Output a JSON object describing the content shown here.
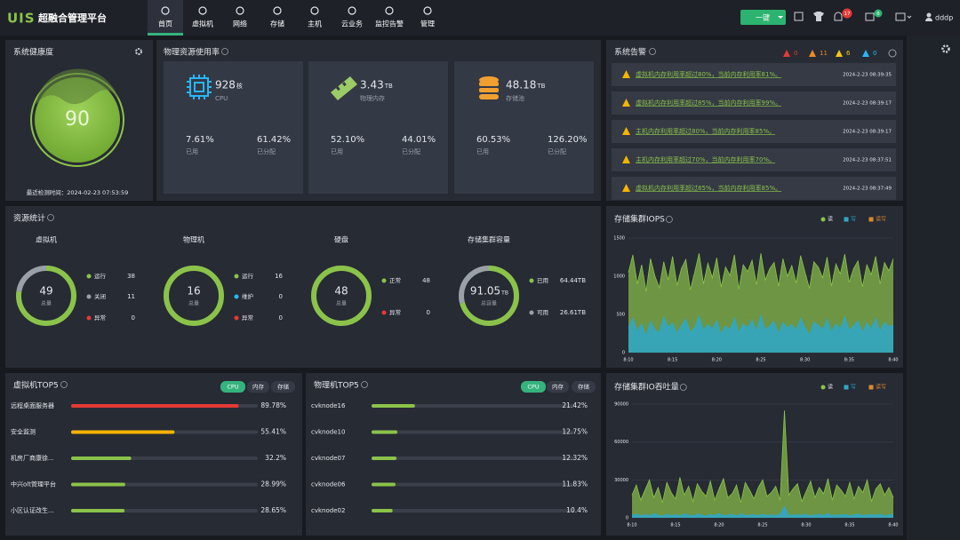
{
  "nav": {
    "logo": "UIS",
    "title": "超融合管理平台",
    "items": [
      "首页",
      "虚拟机",
      "网络",
      "存储",
      "主机",
      "云业务",
      "监控告警",
      "管理"
    ],
    "one_click": "一键",
    "badges": [
      "17",
      "6"
    ],
    "user": "dddp"
  },
  "health": {
    "title": "系统健康度",
    "score": "90",
    "check_time": "最近检测时间：2024-02-23 07:53:59"
  },
  "resources": {
    "title": "物理资源使用率",
    "cards": [
      {
        "value": "928",
        "unit": "核",
        "name": "CPU",
        "used": "7.61%",
        "used_label": "已用",
        "allocated": "61.42%",
        "allocated_label": "已分配"
      },
      {
        "value": "3.43",
        "unit": "TB",
        "name": "物理内存",
        "used": "52.10%",
        "used_label": "已用",
        "allocated": "44.01%",
        "allocated_label": "已分配"
      },
      {
        "value": "48.18",
        "unit": "TB",
        "name": "存储池",
        "used": "60.53%",
        "used_label": "已用",
        "allocated": "126.20%",
        "allocated_label": "已分配"
      }
    ]
  },
  "alerts": {
    "title": "系统告警",
    "counts": [
      "0",
      "11",
      "6",
      "0"
    ],
    "items": [
      {
        "text": "虚拟机内存利用率超过80%，当前内存利用率81%。",
        "time": "2024-2-23 08:39:35"
      },
      {
        "text": "虚拟机内存利用率超过85%，当前内存利用率99%。",
        "time": "2024-2-23 08:39:17"
      },
      {
        "text": "主机内存利用率超过80%，当前内存利用率85%。",
        "time": "2024-2-23 08:39:17"
      },
      {
        "text": "主机内存利用率超过70%，当前内存利用率70%。",
        "time": "2024-2-23 08:37:51"
      },
      {
        "text": "虚拟机内存利用率超过85%，当前内存利用率85%。",
        "time": "2024-2-23 08:37:49"
      }
    ]
  },
  "stats": {
    "title": "资源统计",
    "groups": [
      {
        "name": "虚拟机",
        "total": "49",
        "total_label": "总量",
        "items": [
          {
            "name": "运行",
            "value": 38,
            "color": "#8bc34a"
          },
          {
            "name": "关闭",
            "value": 11,
            "color": "#9aa0a8"
          },
          {
            "name": "异常",
            "value": 0,
            "color": "#e53935"
          }
        ]
      },
      {
        "name": "物理机",
        "total": "16",
        "total_label": "总量",
        "items": [
          {
            "name": "运行",
            "value": 16,
            "color": "#8bc34a"
          },
          {
            "name": "维护",
            "value": 0,
            "color": "#29b6f6"
          },
          {
            "name": "异常",
            "value": 0,
            "color": "#e53935"
          }
        ]
      },
      {
        "name": "硬盘",
        "total": "48",
        "total_label": "总量",
        "items": [
          {
            "name": "正常",
            "value": 48,
            "color": "#8bc34a"
          },
          {
            "name": "异常",
            "value": 0,
            "color": "#e53935"
          }
        ]
      },
      {
        "name": "存储集群容量",
        "total": "91.05",
        "total_unit": "TB",
        "total_label": "总容量",
        "items": [
          {
            "name": "已用",
            "value": 64.44,
            "label": "64.44TB",
            "color": "#8bc34a"
          },
          {
            "name": "可用",
            "value": 26.61,
            "label": "26.61TB",
            "color": "#9aa0a8"
          }
        ]
      }
    ]
  },
  "vm_top": {
    "title": "虚拟机TOP5",
    "tabs": [
      "CPU",
      "内存",
      "存储"
    ],
    "xlim": [
      0,
      100
    ],
    "rows": [
      {
        "name": "远程桌面服务器",
        "value": 89.78,
        "label": "89.78%",
        "color": "#e53935"
      },
      {
        "name": "安全监测",
        "value": 55.41,
        "label": "55.41%",
        "color": "#f5b400"
      },
      {
        "name": "机房厂商康徐...",
        "value": 32.2,
        "label": "32.2%",
        "color": "#8bc34a"
      },
      {
        "name": "中兴olt管理平台",
        "value": 28.99,
        "label": "28.99%",
        "color": "#8bc34a"
      },
      {
        "name": "小区认证改生...",
        "value": 28.65,
        "label": "28.65%",
        "color": "#8bc34a"
      }
    ]
  },
  "host_top": {
    "title": "物理机TOP5",
    "tabs": [
      "CPU",
      "内存",
      "存储"
    ],
    "xlim": [
      0,
      100
    ],
    "rows": [
      {
        "name": "cvknode16",
        "value": 21.42,
        "label": "21.42%",
        "color": "#8bc34a"
      },
      {
        "name": "cvknode10",
        "value": 12.75,
        "label": "12.75%",
        "color": "#8bc34a"
      },
      {
        "name": "cvknode07",
        "value": 12.32,
        "label": "12.32%",
        "color": "#8bc34a"
      },
      {
        "name": "cvknode06",
        "value": 11.83,
        "label": "11.83%",
        "color": "#8bc34a"
      },
      {
        "name": "cvknode02",
        "value": 10.4,
        "label": "10.4%",
        "color": "#8bc34a"
      }
    ]
  },
  "iops_chart": {
    "type": "area",
    "title": "存储集群IOPS",
    "categories": [
      "8:10",
      null,
      null,
      null,
      null,
      null,
      null,
      null,
      null,
      null,
      "8:15",
      null,
      null,
      null,
      null,
      null,
      null,
      null,
      null,
      null,
      "8:20",
      null,
      null,
      null,
      null,
      null,
      null,
      null,
      null,
      null,
      "8:25",
      null,
      null,
      null,
      null,
      null,
      null,
      null,
      null,
      null,
      "8:30",
      null,
      null,
      null,
      null,
      null,
      null,
      null,
      null,
      null,
      "8:35",
      null,
      null,
      null,
      null,
      null,
      null,
      null,
      null,
      null,
      "8:40"
    ],
    "series": [
      {
        "name": "读",
        "color": "#8bc34a",
        "values": [
          1050,
          1280,
          900,
          1150,
          800,
          1230,
          1000,
          850,
          1190,
          950,
          1260,
          880,
          1100,
          1220,
          820,
          1050,
          1300,
          900,
          1170,
          980,
          1240,
          860,
          1120,
          1010,
          1280,
          830,
          1150,
          1060,
          1210,
          890,
          1300,
          950,
          1100,
          1180,
          870,
          1230,
          1000,
          1140,
          910,
          1270,
          1050,
          840,
          1190,
          1120,
          980,
          1250,
          870,
          1160,
          1030,
          1290,
          920,
          1100,
          1200,
          860,
          1150,
          1020,
          1260,
          900,
          1180,
          1070,
          1230
        ]
      },
      {
        "name": "写",
        "color": "#2ea8c9",
        "values": [
          320,
          450,
          280,
          380,
          220,
          410,
          300,
          260,
          470,
          330,
          390,
          250,
          360,
          440,
          270,
          330,
          480,
          290,
          370,
          310,
          420,
          240,
          350,
          300,
          460,
          260,
          380,
          320,
          430,
          280,
          490,
          300,
          350,
          410,
          250,
          400,
          320,
          370,
          290,
          450,
          330,
          230,
          400,
          360,
          300,
          440,
          270,
          380,
          310,
          470,
          290,
          350,
          420,
          260,
          390,
          310,
          450,
          280,
          400,
          340,
          360
        ]
      },
      {
        "name": "读写",
        "color": "#d98a2b"
      }
    ],
    "ylim": [
      0,
      1500
    ],
    "yticks": [
      0,
      500,
      1000,
      1500
    ],
    "grid": true
  },
  "throughput_chart": {
    "type": "area",
    "title": "存储集群IO吞吐量",
    "categories": [
      "8:10",
      null,
      null,
      null,
      null,
      null,
      null,
      null,
      null,
      null,
      "8:15",
      null,
      null,
      null,
      null,
      null,
      null,
      null,
      null,
      null,
      "8:20",
      null,
      null,
      null,
      null,
      null,
      null,
      null,
      null,
      null,
      "8:25",
      null,
      null,
      null,
      null,
      null,
      null,
      null,
      null,
      null,
      "8:30",
      null,
      null,
      null,
      null,
      null,
      null,
      null,
      null,
      null,
      "8:35",
      null,
      null,
      null,
      null,
      null,
      null,
      null,
      null,
      null,
      "8:40"
    ],
    "series": [
      {
        "name": "读",
        "color": "#8bc34a",
        "values": [
          18000,
          26000,
          14000,
          22000,
          30000,
          16000,
          24000,
          12000,
          28000,
          20000,
          15000,
          32000,
          18000,
          25000,
          13000,
          27000,
          21000,
          17000,
          29000,
          14000,
          23000,
          31000,
          16000,
          19000,
          26000,
          12000,
          28000,
          22000,
          15000,
          24000,
          30000,
          17000,
          20000,
          25000,
          14000,
          85000,
          18000,
          23000,
          27000,
          13000,
          21000,
          29000,
          16000,
          24000,
          19000,
          31000,
          14000,
          26000,
          22000,
          17000,
          28000,
          15000,
          25000,
          20000,
          30000,
          13000,
          23000,
          27000,
          18000,
          24000,
          16000
        ]
      },
      {
        "name": "写",
        "color": "#2ea8c9",
        "values": [
          2000,
          3000,
          1500,
          2500,
          1800,
          3200,
          2200,
          1400,
          2800,
          1900,
          2400,
          1600,
          3100,
          2100,
          1700,
          2900,
          2300,
          1500,
          2600,
          2000,
          3300,
          1800,
          2200,
          2700,
          1600,
          3000,
          2100,
          1900,
          2500,
          1700,
          2800,
          2000,
          2400,
          1600,
          3100,
          9000,
          2200,
          1800,
          2600,
          2000,
          2900,
          1500,
          2300,
          2700,
          1900,
          3200,
          1700,
          2500,
          2100,
          2800,
          1600,
          2400,
          3000,
          1800,
          2200,
          2600,
          2000,
          2900,
          1700,
          2300,
          2500
        ]
      },
      {
        "name": "读写",
        "color": "#d98a2b"
      }
    ],
    "ylim": [
      0,
      90000
    ],
    "yticks": [
      0,
      30000,
      60000,
      90000
    ],
    "grid": true
  }
}
